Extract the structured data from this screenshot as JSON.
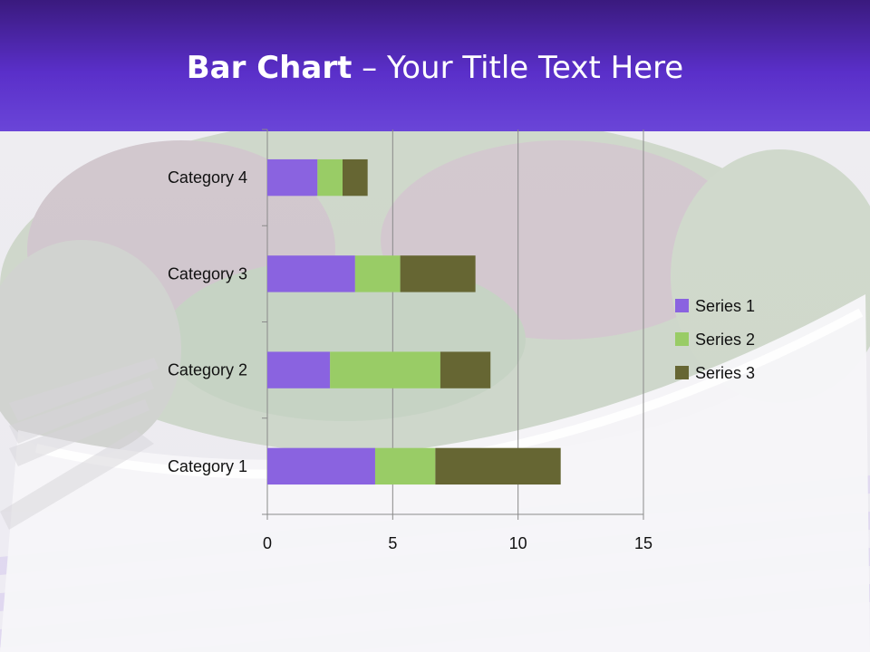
{
  "slide": {
    "title_bold": "Bar Chart",
    "title_rest": " – Your Title Text Here"
  },
  "chart_data": {
    "type": "bar",
    "orientation": "horizontal",
    "stacked": true,
    "categories": [
      "Category 1",
      "Category 2",
      "Category 3",
      "Category 4"
    ],
    "series": [
      {
        "name": "Series 1",
        "values": [
          4.3,
          2.5,
          3.5,
          2.0
        ],
        "color": "#8a63e0"
      },
      {
        "name": "Series 2",
        "values": [
          2.4,
          4.4,
          1.8,
          1.0
        ],
        "color": "#99cc66"
      },
      {
        "name": "Series 3",
        "values": [
          5.0,
          2.0,
          3.0,
          1.0
        ],
        "color": "#666633"
      }
    ],
    "xlim": [
      0,
      15
    ],
    "xticks": [
      "0",
      "5",
      "10",
      "15"
    ],
    "grid": "vertical",
    "legend_position": "right"
  }
}
